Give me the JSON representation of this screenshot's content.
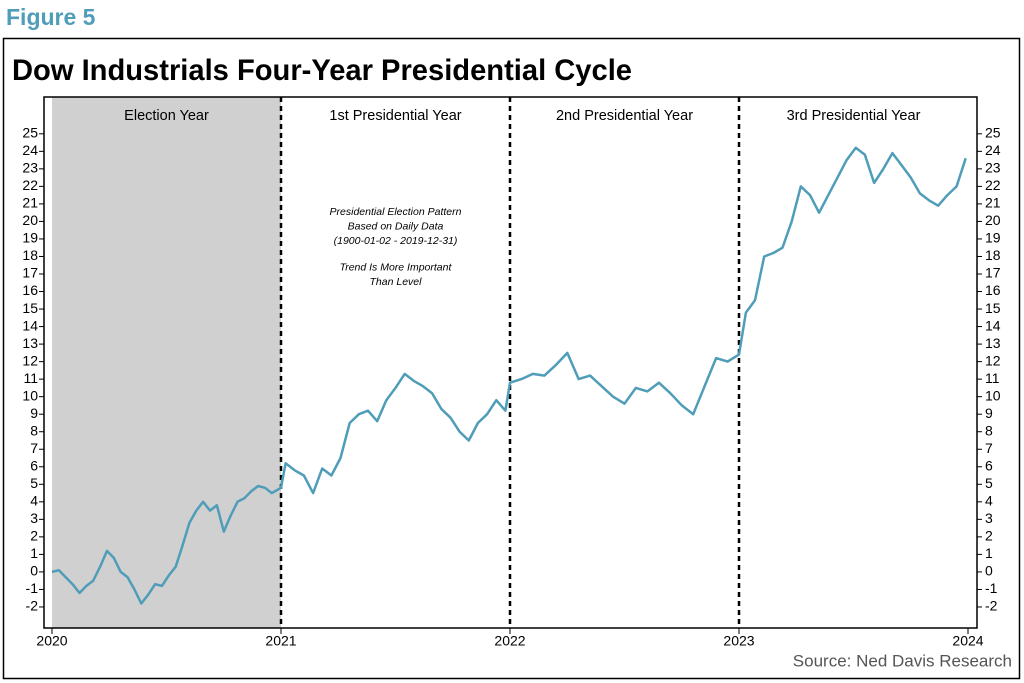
{
  "figure_label": "Figure 5",
  "source": "Source: Ned Davis Research",
  "chart_data": {
    "type": "line",
    "title": "Dow Industrials Four-Year Presidential Cycle",
    "sections": [
      "Election Year",
      "1st Presidential Year",
      "2nd Presidential Year",
      "3rd Presidential Year"
    ],
    "annotations": [
      [
        "Presidential Election Pattern",
        "Based on Daily Data",
        "(1900-01-02 - 2019-12-31)"
      ],
      [
        "Trend Is More Important",
        "Than Level"
      ]
    ],
    "xlim": [
      2020,
      2024
    ],
    "xticks": [
      2020,
      2021,
      2022,
      2023,
      2024
    ],
    "ylim": [
      -3.2,
      27.1
    ],
    "yticks": [
      -2,
      -1,
      0,
      1,
      2,
      3,
      4,
      5,
      6,
      7,
      8,
      9,
      10,
      11,
      12,
      13,
      14,
      15,
      16,
      17,
      18,
      19,
      20,
      21,
      22,
      23,
      24,
      25
    ],
    "y2lim": [
      -3.2,
      27.1
    ],
    "y2ticks": [
      -2,
      -1,
      0,
      1,
      2,
      3,
      4,
      5,
      6,
      7,
      8,
      9,
      10,
      11,
      12,
      13,
      14,
      15,
      16,
      17,
      18,
      19,
      20,
      21,
      22,
      23,
      24,
      25
    ],
    "shaded_section": 0,
    "shade_color": "#d0d0d0",
    "series": [
      {
        "color": "#4f9db8",
        "x": [
          2020.0,
          2020.03,
          2020.06,
          2020.09,
          2020.12,
          2020.15,
          2020.18,
          2020.21,
          2020.24,
          2020.27,
          2020.3,
          2020.33,
          2020.36,
          2020.39,
          2020.42,
          2020.45,
          2020.48,
          2020.51,
          2020.54,
          2020.57,
          2020.6,
          2020.63,
          2020.66,
          2020.69,
          2020.72,
          2020.75,
          2020.78,
          2020.81,
          2020.84,
          2020.87,
          2020.9,
          2020.93,
          2020.96,
          2021.0,
          2021.02,
          2021.06,
          2021.1,
          2021.14,
          2021.18,
          2021.22,
          2021.26,
          2021.3,
          2021.34,
          2021.38,
          2021.42,
          2021.46,
          2021.5,
          2021.54,
          2021.58,
          2021.62,
          2021.66,
          2021.7,
          2021.74,
          2021.78,
          2021.82,
          2021.86,
          2021.9,
          2021.94,
          2021.98,
          2022.0,
          2022.05,
          2022.1,
          2022.15,
          2022.2,
          2022.25,
          2022.3,
          2022.35,
          2022.4,
          2022.45,
          2022.5,
          2022.55,
          2022.6,
          2022.65,
          2022.7,
          2022.75,
          2022.8,
          2022.85,
          2022.9,
          2022.95,
          2023.0,
          2023.03,
          2023.07,
          2023.11,
          2023.15,
          2023.19,
          2023.23,
          2023.27,
          2023.31,
          2023.35,
          2023.39,
          2023.43,
          2023.47,
          2023.51,
          2023.55,
          2023.59,
          2023.63,
          2023.67,
          2023.71,
          2023.75,
          2023.79,
          2023.83,
          2023.87,
          2023.91,
          2023.95,
          2023.99
        ],
        "values": [
          0,
          0.1,
          -0.3,
          -0.7,
          -1.2,
          -0.8,
          -0.5,
          0.3,
          1.2,
          0.8,
          0,
          -0.3,
          -1.0,
          -1.8,
          -1.3,
          -0.7,
          -0.8,
          -0.2,
          0.3,
          1.5,
          2.8,
          3.5,
          4.0,
          3.5,
          3.8,
          2.3,
          3.2,
          4.0,
          4.2,
          4.6,
          4.9,
          4.8,
          4.5,
          4.8,
          6.2,
          5.8,
          5.5,
          4.5,
          5.9,
          5.5,
          6.5,
          8.5,
          9.0,
          9.2,
          8.6,
          9.8,
          10.5,
          11.3,
          10.9,
          10.6,
          10.2,
          9.3,
          8.8,
          8.0,
          7.5,
          8.5,
          9.0,
          9.8,
          9.2,
          10.8,
          11.0,
          11.3,
          11.2,
          11.8,
          12.5,
          11.0,
          11.2,
          10.6,
          10.0,
          9.6,
          10.5,
          10.3,
          10.8,
          10.2,
          9.5,
          9.0,
          10.6,
          12.2,
          12.0,
          12.4,
          14.8,
          15.5,
          18.0,
          18.2,
          18.5,
          20.0,
          22.0,
          21.5,
          20.5,
          21.5,
          22.5,
          23.5,
          24.2,
          23.8,
          22.2,
          23.0,
          23.9,
          23.2,
          22.5,
          21.6,
          21.2,
          20.9,
          21.5,
          22.0,
          23.6
        ]
      }
    ]
  }
}
